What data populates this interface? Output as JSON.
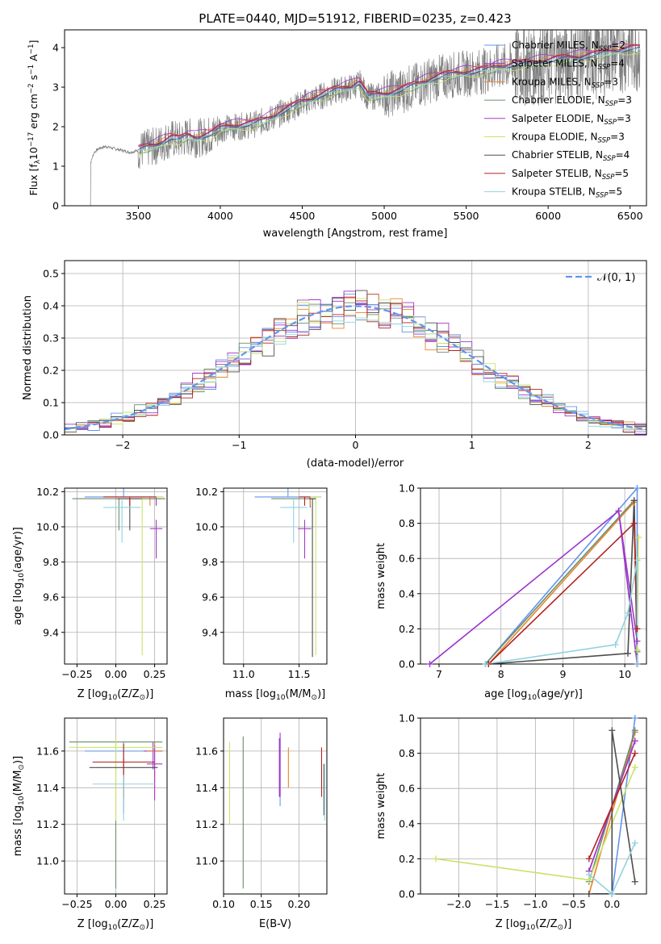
{
  "figure": {
    "title": "PLATE=0440, MJD=51912, FIBERID=0235, z=0.423"
  },
  "colors": {
    "data": "#808080",
    "models": [
      "#6495ed",
      "#9932cc",
      "#e8842c",
      "#6b8e6b",
      "#a43bc4",
      "#c9e36a",
      "#4d4d4d",
      "#b22222",
      "#8fd3e0"
    ],
    "gaussian": "#6495ed",
    "grid": "#b0b0b0"
  },
  "legend_models": [
    {
      "name": "Chabrier MILES",
      "n": "2"
    },
    {
      "name": "Salpeter MILES",
      "n": "4"
    },
    {
      "name": "Kroupa MILES",
      "n": "3"
    },
    {
      "name": "Chabrier ELODIE",
      "n": "3"
    },
    {
      "name": "Salpeter ELODIE",
      "n": "3"
    },
    {
      "name": "Kroupa ELODIE",
      "n": "3"
    },
    {
      "name": "Chabrier STELIB",
      "n": "4"
    },
    {
      "name": "Salpeter STELIB",
      "n": "5"
    },
    {
      "name": "Kroupa STELIB",
      "n": "5"
    }
  ],
  "chart_data": [
    {
      "id": "spectrum",
      "type": "line",
      "xlabel": "wavelength [Angstrom, rest frame]",
      "ylabel_parts": [
        "Flux [f",
        "λ",
        "10",
        "−17",
        " erg cm",
        "−2",
        " s",
        "−1",
        " A",
        "−1",
        "]"
      ],
      "xlim": [
        3050,
        6600
      ],
      "ylim": [
        0,
        4.45
      ],
      "xticks": [
        3500,
        4000,
        4500,
        5000,
        5500,
        6000,
        6500
      ],
      "yticks": [
        0,
        1,
        2,
        3,
        4
      ],
      "legend_position": "top-right",
      "data_series": {
        "name": "data",
        "x": [
          3200,
          3210,
          3230,
          3260,
          3300,
          3350,
          3400,
          3450,
          3500,
          3550,
          3600,
          3650,
          3700,
          3750,
          3800,
          3850,
          3900,
          3950,
          4000,
          4100,
          4200,
          4300,
          4400,
          4500,
          4600,
          4700,
          4800,
          4850,
          4900,
          5000,
          5100,
          5200,
          5300,
          5400,
          5500,
          5600,
          5700,
          5800,
          5900,
          6000,
          6100,
          6200,
          6300,
          6400,
          6500
        ],
        "y": [
          0,
          1.1,
          1.35,
          1.45,
          1.5,
          1.45,
          1.4,
          1.35,
          1.4,
          1.45,
          1.5,
          1.6,
          1.7,
          1.65,
          1.75,
          1.7,
          1.75,
          1.8,
          1.95,
          2.0,
          2.05,
          2.2,
          2.4,
          2.6,
          2.75,
          2.9,
          3.0,
          3.1,
          2.75,
          2.8,
          2.9,
          3.05,
          3.2,
          3.3,
          3.35,
          3.4,
          3.5,
          3.55,
          3.6,
          3.65,
          3.7,
          3.75,
          3.8,
          3.9,
          3.95
        ]
      },
      "model_offsets": [
        0.0,
        0.05,
        0.1,
        -0.05,
        0.15,
        -0.08,
        0.02,
        0.08,
        -0.02
      ]
    },
    {
      "id": "residuals",
      "type": "area",
      "xlabel": "(data-model)/error",
      "ylabel": "Normed distribution",
      "xlim": [
        -2.5,
        2.5
      ],
      "ylim": [
        0,
        0.54
      ],
      "xticks": [
        -2,
        -1,
        0,
        1,
        2
      ],
      "yticks": [
        0.0,
        0.1,
        0.2,
        0.3,
        0.4,
        0.5
      ],
      "legend": [
        "𝒩(0, 1)"
      ],
      "legend_position": "top-right",
      "bin_width": 0.1,
      "bin_start": -2.5,
      "gaussian": {
        "mean": 0,
        "sigma": 1
      }
    },
    {
      "id": "age-vs-Z",
      "type": "scatter",
      "xlabel_parts": [
        "Z [log",
        "10",
        "(Z/Z",
        "⊙",
        ")]"
      ],
      "ylabel_parts": [
        "age  [log",
        "10",
        "(age/yr)]"
      ],
      "xlim": [
        -0.33,
        0.33
      ],
      "ylim": [
        9.22,
        10.22
      ],
      "xticks": [
        -0.25,
        0.0,
        0.25
      ],
      "yticks": [
        9.4,
        9.6,
        9.8,
        10.0,
        10.2
      ],
      "points": [
        {
          "x": 0.05,
          "y": 10.17,
          "xerr": 0.25,
          "yerr": [
            0.0,
            0.05
          ]
        },
        {
          "x": 0.26,
          "y": 10.16,
          "xerr": 0.04,
          "yerr": [
            0.04,
            0.01
          ]
        },
        {
          "x": 0.22,
          "y": 10.16,
          "xerr": 0.05,
          "yerr": [
            0.04,
            0.01
          ]
        },
        {
          "x": 0.02,
          "y": 10.16,
          "xerr": 0.3,
          "yerr": [
            0.18,
            0.0
          ]
        },
        {
          "x": 0.26,
          "y": 9.99,
          "xerr": 0.04,
          "yerr": [
            0.17,
            0.05
          ]
        },
        {
          "x": 0.17,
          "y": 10.17,
          "xerr": 0.14,
          "yerr": [
            0.9,
            0.0
          ]
        },
        {
          "x": 0.09,
          "y": 10.16,
          "xerr": 0.08,
          "yerr": [
            0.18,
            0.0
          ]
        },
        {
          "x": 0.09,
          "y": 10.17,
          "xerr": 0.17,
          "yerr": [
            0.05,
            0.0
          ]
        },
        {
          "x": 0.04,
          "y": 10.11,
          "xerr": 0.12,
          "yerr": [
            0.2,
            0.05
          ]
        }
      ]
    },
    {
      "id": "age-vs-mass",
      "type": "scatter",
      "xlabel_parts": [
        "mass [log",
        "10",
        "(M/M",
        "⊙",
        ")]"
      ],
      "xlim": [
        10.82,
        11.75
      ],
      "ylim": [
        9.22,
        10.22
      ],
      "xticks": [
        11.0,
        11.5
      ],
      "yticks": [
        9.4,
        9.6,
        9.8,
        10.0,
        10.2
      ],
      "points": [
        {
          "x": 11.4,
          "y": 10.17,
          "xerr": 0.3,
          "yerr": [
            0.0,
            0.05
          ]
        },
        {
          "x": 11.6,
          "y": 10.16,
          "xerr": 0.05,
          "yerr": [
            0.05,
            0.01
          ]
        },
        {
          "x": 11.6,
          "y": 10.16,
          "xerr": 0.04,
          "yerr": [
            0.04,
            0.01
          ]
        },
        {
          "x": 11.45,
          "y": 10.16,
          "xerr": 0.2,
          "yerr": [
            0.0,
            0.0
          ]
        },
        {
          "x": 11.55,
          "y": 9.99,
          "xerr": 0.06,
          "yerr": [
            0.17,
            0.05
          ]
        },
        {
          "x": 11.65,
          "y": 10.17,
          "xerr": 0.05,
          "yerr": [
            0.9,
            0.0
          ]
        },
        {
          "x": 11.62,
          "y": 10.16,
          "xerr": 0.03,
          "yerr": [
            0.9,
            0.0
          ]
        },
        {
          "x": 11.55,
          "y": 10.17,
          "xerr": 0.05,
          "yerr": [
            0.05,
            0.0
          ]
        },
        {
          "x": 11.45,
          "y": 10.11,
          "xerr": 0.12,
          "yerr": [
            0.2,
            0.05
          ]
        }
      ]
    },
    {
      "id": "weight-vs-age",
      "type": "line",
      "xlabel_parts": [
        "age  [log",
        "10",
        "(age/yr)]"
      ],
      "ylabel": "mass weight",
      "xlim": [
        6.7,
        10.35
      ],
      "ylim": [
        0,
        1.0
      ],
      "xticks": [
        7,
        8,
        9,
        10
      ],
      "yticks": [
        0.0,
        0.2,
        0.4,
        0.6,
        0.8,
        1.0
      ],
      "series": [
        {
          "x": [
            7.75,
            10.2,
            10.2
          ],
          "y": [
            0.0,
            1.0,
            0.0
          ]
        },
        {
          "x": [
            6.85,
            9.9,
            10.2,
            10.2
          ],
          "y": [
            0.0,
            0.87,
            0.0,
            0.2
          ]
        },
        {
          "x": [
            7.8,
            10.15,
            10.2
          ],
          "y": [
            0.0,
            0.92,
            0.08
          ]
        },
        {
          "x": [
            7.75,
            10.15,
            10.2
          ],
          "y": [
            0.0,
            0.93,
            0.07
          ]
        },
        {
          "x": [
            9.9,
            10.2,
            10.2
          ],
          "y": [
            0.87,
            0.13,
            0.0
          ]
        },
        {
          "x": [
            10.2,
            10.22,
            10.2
          ],
          "y": [
            0.08,
            0.72,
            0.2
          ]
        },
        {
          "x": [
            7.8,
            10.05,
            10.15,
            10.2
          ],
          "y": [
            0.0,
            0.06,
            0.93,
            0.0
          ]
        },
        {
          "x": [
            7.8,
            10.15,
            10.2
          ],
          "y": [
            0.0,
            0.8,
            0.2
          ]
        },
        {
          "x": [
            7.75,
            9.85,
            10.05,
            10.2,
            10.2
          ],
          "y": [
            0.0,
            0.11,
            0.29,
            0.59,
            0.0
          ]
        }
      ]
    },
    {
      "id": "mass-vs-Z",
      "type": "scatter",
      "xlabel_parts": [
        "Z [log",
        "10",
        "(Z/Z",
        "⊙",
        ")]"
      ],
      "ylabel_parts": [
        "mass [log",
        "10",
        "(M/M",
        "⊙",
        ")]"
      ],
      "xlim": [
        -0.33,
        0.33
      ],
      "ylim": [
        10.82,
        11.78
      ],
      "xticks": [
        -0.25,
        0.0,
        0.25
      ],
      "yticks": [
        11.0,
        11.2,
        11.4,
        11.6
      ],
      "points": [
        {
          "x": 0.05,
          "y": 11.6,
          "xerr": 0.25,
          "yerr": [
            0.05,
            0.05
          ]
        },
        {
          "x": 0.24,
          "y": 11.6,
          "xerr": 0.06,
          "yerr": [
            0.1,
            0.05
          ]
        },
        {
          "x": 0.25,
          "y": 11.6,
          "xerr": 0.05,
          "yerr": [
            0.2,
            0.05
          ]
        },
        {
          "x": 0.0,
          "y": 11.65,
          "xerr": 0.3,
          "yerr": [
            0.8,
            0.0
          ]
        },
        {
          "x": 0.25,
          "y": 11.53,
          "xerr": 0.05,
          "yerr": [
            0.2,
            0.1
          ]
        },
        {
          "x": 0.0,
          "y": 11.62,
          "xerr": 0.3,
          "yerr": [
            0.4,
            0.05
          ]
        },
        {
          "x": 0.05,
          "y": 11.51,
          "xerr": 0.22,
          "yerr": [
            0.25,
            0.05
          ]
        },
        {
          "x": 0.05,
          "y": 11.54,
          "xerr": 0.2,
          "yerr": [
            0.2,
            0.1
          ]
        },
        {
          "x": 0.05,
          "y": 11.42,
          "xerr": 0.2,
          "yerr": [
            0.2,
            0.05
          ]
        }
      ]
    },
    {
      "id": "mass-vs-ebv",
      "type": "scatter",
      "xlabel": "E(B-V)",
      "xlim": [
        0.1,
        0.237
      ],
      "ylim": [
        10.82,
        11.78
      ],
      "xticks": [
        0.1,
        0.15,
        0.2
      ],
      "yticks": [
        11.0,
        11.2,
        11.4,
        11.6
      ],
      "points": [
        {
          "x": 0.175,
          "y": 11.45,
          "xerr": 0.0,
          "yerr": [
            0.15,
            0.22
          ]
        },
        {
          "x": 0.174,
          "y": 11.55,
          "xerr": 0.0,
          "yerr": [
            0.2,
            0.12
          ]
        },
        {
          "x": 0.186,
          "y": 11.5,
          "xerr": 0.0,
          "yerr": [
            0.1,
            0.12
          ]
        },
        {
          "x": 0.126,
          "y": 11.4,
          "xerr": 0.0,
          "yerr": [
            0.55,
            0.28
          ]
        },
        {
          "x": 0.175,
          "y": 11.55,
          "xerr": 0.0,
          "yerr": [
            0.2,
            0.15
          ]
        },
        {
          "x": 0.108,
          "y": 11.4,
          "xerr": 0.0,
          "yerr": [
            0.2,
            0.25
          ]
        },
        {
          "x": 0.233,
          "y": 11.45,
          "xerr": 0.0,
          "yerr": [
            0.2,
            0.08
          ]
        },
        {
          "x": 0.23,
          "y": 11.5,
          "xerr": 0.0,
          "yerr": [
            0.15,
            0.12
          ]
        },
        {
          "x": 0.234,
          "y": 11.4,
          "xerr": 0.0,
          "yerr": [
            0.18,
            0.13
          ]
        }
      ]
    },
    {
      "id": "weight-vs-Z",
      "type": "line",
      "xlabel_parts": [
        "Z [log",
        "10",
        "(Z/Z",
        "⊙",
        ")]"
      ],
      "ylabel": "mass weight",
      "xlim": [
        -2.5,
        0.45
      ],
      "ylim": [
        0,
        1.0
      ],
      "xticks": [
        -2.0,
        -1.5,
        -1.0,
        -0.5,
        0.0
      ],
      "yticks": [
        0.0,
        0.2,
        0.4,
        0.6,
        0.8,
        1.0
      ],
      "series": [
        {
          "x": [
            -0.3,
            0.0,
            0.3
          ],
          "y": [
            0.0,
            0.0,
            1.0
          ]
        },
        {
          "x": [
            -0.3,
            0.3
          ],
          "y": [
            0.13,
            0.87
          ]
        },
        {
          "x": [
            -0.3,
            0.3
          ],
          "y": [
            0.0,
            0.92
          ]
        },
        {
          "x": [
            -0.3,
            0.3
          ],
          "y": [
            0.07,
            0.93
          ]
        },
        {
          "x": [
            -0.3,
            0.3
          ],
          "y": [
            0.13,
            0.87
          ]
        },
        {
          "x": [
            -2.3,
            -0.3,
            0.3
          ],
          "y": [
            0.2,
            0.08,
            0.72
          ]
        },
        {
          "x": [
            -0.3,
            0.0,
            0.0,
            0.3
          ],
          "y": [
            0.0,
            0.0,
            0.93,
            0.07
          ]
        },
        {
          "x": [
            -0.3,
            0.3
          ],
          "y": [
            0.2,
            0.8
          ]
        },
        {
          "x": [
            -0.3,
            0.0,
            0.3
          ],
          "y": [
            0.11,
            0.0,
            0.29
          ]
        }
      ]
    }
  ]
}
